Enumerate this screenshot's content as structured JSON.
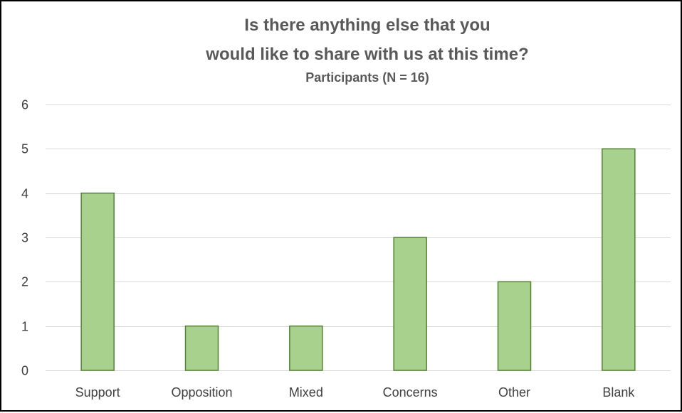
{
  "chart_data": {
    "type": "bar",
    "title_lines": [
      "Is there anything else that you",
      "would like to share with us at this time?"
    ],
    "subtitle": "Participants (N = 16)",
    "categories": [
      "Support",
      "Opposition",
      "Mixed",
      "Concerns",
      "Other",
      "Blank"
    ],
    "values": [
      4,
      1,
      1,
      3,
      2,
      5
    ],
    "xlabel": "",
    "ylabel": "",
    "ylim": [
      0,
      6
    ],
    "yticks": [
      0,
      1,
      2,
      3,
      4,
      5,
      6
    ],
    "grid": true,
    "legend": "none",
    "colors": {
      "bar_fill": "#a9d18e",
      "bar_stroke": "#548235",
      "grid": "#d9d9d9",
      "title": "#595959",
      "tick_label": "#404040",
      "frame": "#000000"
    }
  }
}
